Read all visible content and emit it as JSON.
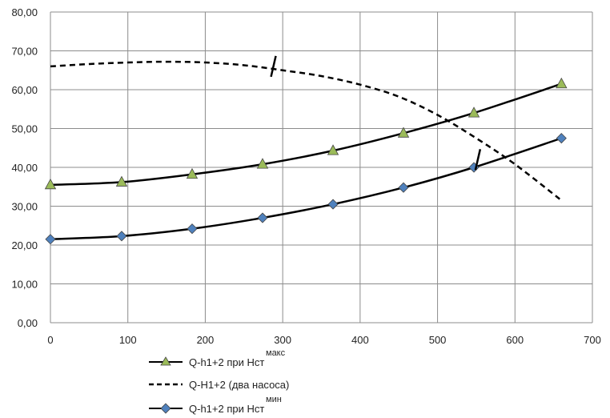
{
  "chart_data": {
    "type": "line",
    "title": "",
    "xlabel": "",
    "ylabel": "",
    "xlim": [
      0,
      700
    ],
    "ylim": [
      0,
      80
    ],
    "grid": true,
    "legend_position": "bottom",
    "x_ticks": [
      "0",
      "100",
      "200",
      "300",
      "400",
      "500",
      "600",
      "700"
    ],
    "y_ticks": [
      "0,00",
      "10,00",
      "20,00",
      "30,00",
      "40,00",
      "50,00",
      "60,00",
      "70,00",
      "80,00"
    ],
    "series": [
      {
        "name": "Q-h1+2 при Нст",
        "name_sup": "макс",
        "marker": "triangle",
        "marker_color": "#9bbb59",
        "line_style": "solid",
        "x": [
          0,
          92,
          183,
          274,
          365,
          456,
          547,
          660
        ],
        "y": [
          35.5,
          36.2,
          38.2,
          40.8,
          44.3,
          48.8,
          54.0,
          61.5
        ]
      },
      {
        "name": "Q-H1+2 (два насоса)",
        "line_style": "dashed",
        "x": [
          0,
          50,
          100,
          150,
          200,
          250,
          300,
          350,
          400,
          450,
          500,
          550,
          600,
          660
        ],
        "y": [
          66.0,
          66.6,
          67.0,
          67.2,
          67.0,
          66.3,
          65.0,
          63.5,
          61.3,
          58.2,
          53.5,
          47.5,
          40.8,
          31.5
        ]
      },
      {
        "name": "Q-h1+2 при Нст",
        "name_sup": "мин",
        "marker": "diamond",
        "marker_color": "#4f81bd",
        "line_style": "solid",
        "x": [
          0,
          92,
          183,
          274,
          365,
          456,
          547,
          660
        ],
        "y": [
          21.5,
          22.3,
          24.2,
          27.0,
          30.5,
          34.8,
          40.0,
          47.5
        ]
      }
    ],
    "annotations": [
      {
        "type": "tick-mark",
        "x": 288,
        "y": 66
      },
      {
        "type": "tick-mark",
        "x": 552,
        "y": 42
      }
    ]
  }
}
